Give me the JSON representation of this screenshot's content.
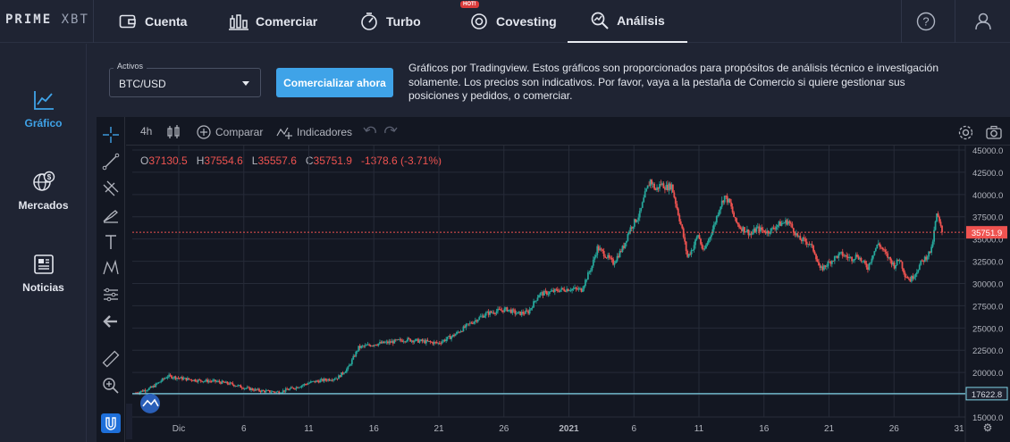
{
  "brand": {
    "logo_bold": "PRIME",
    "logo_light": "XBT"
  },
  "nav": [
    {
      "label": "Cuenta",
      "icon": "wallet-icon"
    },
    {
      "label": "Comerciar",
      "icon": "candles-icon"
    },
    {
      "label": "Turbo",
      "icon": "turbo-icon"
    },
    {
      "label": "Covesting",
      "icon": "covesting-icon",
      "badge": "HOT!"
    },
    {
      "label": "Análisis",
      "icon": "analysis-icon",
      "active": true
    }
  ],
  "sidebar": [
    {
      "label": "Gráfico",
      "icon": "chart-icon",
      "active": true
    },
    {
      "label": "Mercados",
      "icon": "globe-dollar-icon"
    },
    {
      "label": "Noticias",
      "icon": "newspaper-icon"
    }
  ],
  "assets": {
    "label": "Activos",
    "value": "BTC/USD"
  },
  "trade_button": "Comercializar ahora",
  "disclaimer": "Gráficos por Tradingview. Estos gráficos son proporcionados para propósitos de análisis técnico e investigación solamente. Los precios son indicativos. Por favor, vaya a la pestaña de Comercio si quiere gestionar sus posiciones y pedidos, o comerciar.",
  "toolbar": {
    "interval": "4h",
    "compare": "Comparar",
    "indicators": "Indicadores"
  },
  "ohlc": {
    "o_label": "O",
    "o": "37130.5",
    "h_label": "H",
    "h": "37554.6",
    "l_label": "L",
    "l": "35557.6",
    "c_label": "C",
    "c": "35751.9",
    "change": "-1378.6 (-3.71%)"
  },
  "colors": {
    "up": "#26a69a",
    "down": "#ef5350",
    "accent": "#3fa3e8",
    "current_price": "#ef5350",
    "horizontal_line": "#7fd3e6"
  },
  "chart_data": {
    "type": "candlestick",
    "symbol": "BTC/USD",
    "interval": "4h",
    "ylim": [
      15000,
      45500
    ],
    "y_ticks": [
      "45000.0",
      "42500.0",
      "40000.0",
      "37500.0",
      "35000.0",
      "32500.0",
      "30000.0",
      "27500.0",
      "25000.0",
      "22500.0",
      "20000.0",
      "17500.0",
      "15000.0"
    ],
    "x_ticks": [
      "Dic",
      "6",
      "11",
      "16",
      "21",
      "26",
      "2021",
      "6",
      "11",
      "16",
      "21",
      "26",
      "31"
    ],
    "current_price": 35751.9,
    "current_price_label": "35751.9",
    "horizontal_line": 17622.8,
    "horizontal_line_label": "17622.8",
    "path": [
      [
        0,
        17700
      ],
      [
        3,
        18300
      ],
      [
        6,
        19600
      ],
      [
        9,
        19300
      ],
      [
        12,
        19100
      ],
      [
        15,
        19000
      ],
      [
        18,
        18700
      ],
      [
        21,
        18200
      ],
      [
        24,
        17900
      ],
      [
        27,
        17800
      ],
      [
        30,
        18300
      ],
      [
        33,
        18900
      ],
      [
        36,
        19200
      ],
      [
        38,
        19400
      ],
      [
        40,
        20500
      ],
      [
        42,
        22800
      ],
      [
        45,
        23200
      ],
      [
        48,
        23400
      ],
      [
        51,
        23700
      ],
      [
        54,
        23500
      ],
      [
        57,
        23300
      ],
      [
        60,
        24200
      ],
      [
        63,
        25500
      ],
      [
        66,
        26600
      ],
      [
        68,
        26900
      ],
      [
        70,
        27100
      ],
      [
        72,
        26600
      ],
      [
        74,
        26800
      ],
      [
        76,
        28800
      ],
      [
        78,
        29000
      ],
      [
        80,
        29300
      ],
      [
        82,
        29400
      ],
      [
        84,
        29300
      ],
      [
        86,
        32000
      ],
      [
        87,
        34000
      ],
      [
        88,
        33500
      ],
      [
        90,
        32300
      ],
      [
        92,
        34200
      ],
      [
        93,
        36000
      ],
      [
        95,
        37800
      ],
      [
        96,
        40000
      ],
      [
        97,
        41600
      ],
      [
        98,
        40500
      ],
      [
        99,
        41200
      ],
      [
        100,
        40800
      ],
      [
        101,
        41000
      ],
      [
        102,
        38500
      ],
      [
        103,
        36000
      ],
      [
        104,
        33000
      ],
      [
        105,
        34000
      ],
      [
        106,
        35500
      ],
      [
        107,
        33500
      ],
      [
        108,
        35000
      ],
      [
        109,
        36500
      ],
      [
        110,
        38500
      ],
      [
        111,
        39800
      ],
      [
        112,
        39000
      ],
      [
        113,
        37000
      ],
      [
        114,
        36300
      ],
      [
        115,
        36000
      ],
      [
        116,
        35500
      ],
      [
        117,
        36200
      ],
      [
        118,
        36000
      ],
      [
        119,
        35800
      ],
      [
        120,
        36100
      ],
      [
        121,
        36600
      ],
      [
        122,
        36800
      ],
      [
        123,
        37000
      ],
      [
        124,
        36000
      ],
      [
        125,
        35000
      ],
      [
        126,
        34800
      ],
      [
        127,
        34500
      ],
      [
        128,
        33500
      ],
      [
        129,
        31500
      ],
      [
        130,
        32000
      ],
      [
        131,
        32500
      ],
      [
        132,
        33000
      ],
      [
        133,
        33300
      ],
      [
        134,
        33000
      ],
      [
        135,
        32800
      ],
      [
        136,
        33200
      ],
      [
        137,
        32400
      ],
      [
        138,
        31800
      ],
      [
        139,
        33400
      ],
      [
        140,
        34500
      ],
      [
        141,
        33600
      ],
      [
        142,
        32800
      ],
      [
        143,
        32000
      ],
      [
        144,
        32800
      ],
      [
        145,
        31000
      ],
      [
        146,
        30400
      ],
      [
        147,
        31200
      ],
      [
        148,
        32300
      ],
      [
        149,
        33000
      ],
      [
        150,
        33800
      ],
      [
        151,
        37800
      ],
      [
        152,
        35752
      ]
    ]
  }
}
